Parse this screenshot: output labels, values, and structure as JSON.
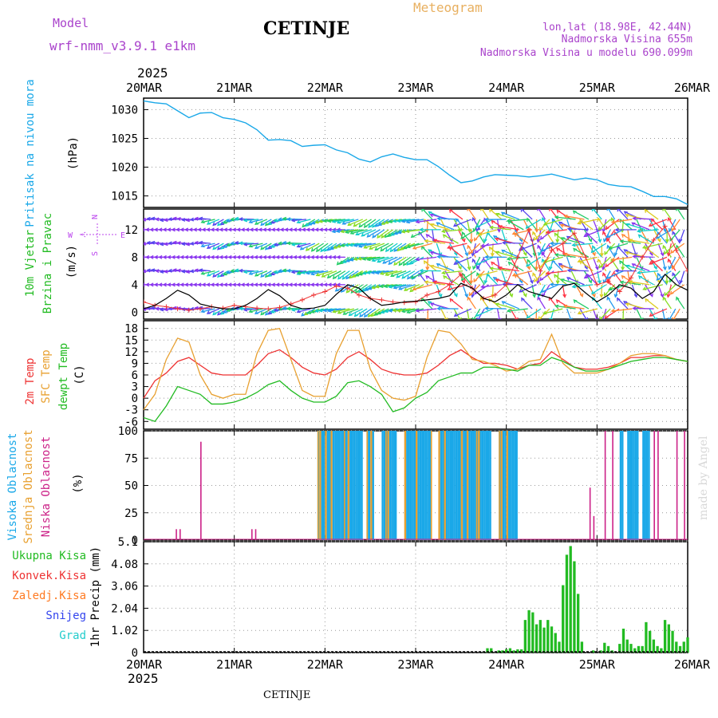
{
  "header": {
    "model_label": "Model",
    "model_name": "wrf-nmm_v3.9.1 e1km",
    "city": "CETINJE",
    "meteogram": "Meteogram",
    "lonlat": "lon,lat (18.98E, 42.44N)",
    "altitude": "Nadmorska Visina 655m",
    "model_altitude": "Nadmorska Visina u modelu 690.099m",
    "footer_city": "CETINJE",
    "credit": "made by Angel",
    "year": "2025"
  },
  "colors": {
    "pressure": "#1aa8e8",
    "wind_label": "#22bb22",
    "wind_dir": "#bb44ee",
    "wind_speed_line": "#000000",
    "gust": "#ee3333",
    "temp2m": "#ee3333",
    "sfc_temp": "#e8a030",
    "dewpt": "#22bb22",
    "cloud_high": "#1aa8e8",
    "cloud_mid": "#e8a030",
    "cloud_low": "#cc2288",
    "precip_total": "#22bb22",
    "precip_conv": "#ee3333",
    "precip_frozen": "#ff7a22",
    "snow": "#3344ee",
    "hail": "#22cccc",
    "meta": "#aa44cc",
    "meteogram": "#e8b060"
  },
  "x_axis": {
    "labels": [
      "20MAR",
      "21MAR",
      "22MAR",
      "23MAR",
      "24MAR",
      "25MAR",
      "26MAR"
    ],
    "range_hours": [
      0,
      144
    ]
  },
  "chart_data": [
    {
      "type": "line",
      "panel": "pressure",
      "ylabel_lines": [
        "Pritisak na nivou mora"
      ],
      "unit": "(hPa)",
      "ylim": [
        1013,
        1032
      ],
      "yticks": [
        1015,
        1020,
        1025,
        1030
      ],
      "grid": true,
      "x_hours": [
        0,
        3,
        6,
        9,
        12,
        15,
        18,
        21,
        24,
        27,
        30,
        33,
        36,
        39,
        42,
        45,
        48,
        51,
        54,
        57,
        60,
        63,
        66,
        69,
        72,
        75,
        78,
        81,
        84,
        87,
        90,
        93,
        96,
        99,
        102,
        105,
        108,
        111,
        114,
        117,
        120,
        123,
        126,
        129,
        132,
        135,
        138,
        141,
        144
      ],
      "series": [
        {
          "values": [
            1031.5,
            1031.2,
            1031.0,
            1029.8,
            1028.6,
            1029.4,
            1029.5,
            1028.6,
            1028.3,
            1027.7,
            1026.5,
            1024.7,
            1024.8,
            1024.6,
            1023.6,
            1023.8,
            1023.9,
            1023.0,
            1022.5,
            1021.4,
            1020.9,
            1021.8,
            1022.3,
            1021.7,
            1021.3,
            1021.3,
            1020.1,
            1018.6,
            1017.3,
            1017.6,
            1018.3,
            1018.7,
            1018.6,
            1018.5,
            1018.3,
            1018.5,
            1018.8,
            1018.3,
            1017.8,
            1018.1,
            1017.8,
            1017.0,
            1016.7,
            1016.6,
            1015.8,
            1014.9,
            1014.9,
            1014.5,
            1013.5
          ]
        }
      ]
    },
    {
      "type": "line",
      "panel": "wind",
      "ylabel_lines": [
        "10m Vjetar",
        "Brzina i Pravac"
      ],
      "unit": "(m/s)",
      "compass": [
        "N",
        "S",
        "W",
        "E"
      ],
      "ylim": [
        -1,
        15
      ],
      "yticks": [
        0,
        4,
        8,
        12
      ],
      "grid": true,
      "x_hours": [
        0,
        3,
        6,
        9,
        12,
        15,
        18,
        21,
        24,
        27,
        30,
        33,
        36,
        39,
        42,
        45,
        48,
        51,
        54,
        57,
        60,
        63,
        66,
        69,
        72,
        75,
        78,
        81,
        84,
        87,
        90,
        93,
        96,
        99,
        102,
        105,
        108,
        111,
        114,
        117,
        120,
        123,
        126,
        129,
        132,
        135,
        138,
        141,
        144
      ],
      "series": [
        {
          "name": "speed",
          "values": [
            0.5,
            1.0,
            2.0,
            3.2,
            2.5,
            1.2,
            0.8,
            0.5,
            0.5,
            1.0,
            2.0,
            3.3,
            2.4,
            1.0,
            0.5,
            0.6,
            1.0,
            2.6,
            4.0,
            3.5,
            2.0,
            1.0,
            1.2,
            1.5,
            1.6,
            1.8,
            2.0,
            2.4,
            4.2,
            3.5,
            2.0,
            1.5,
            2.5,
            4.0,
            3.0,
            2.5,
            2.0,
            3.8,
            4.2,
            2.8,
            1.5,
            2.5,
            4.0,
            3.5,
            2.0,
            3.0,
            5.5,
            4.0,
            3.2
          ]
        },
        {
          "name": "gust",
          "values": [
            1.5,
            1.0,
            0.8,
            0.5,
            0.3,
            0.5,
            0.8,
            0.6,
            1.0,
            0.8,
            0.6,
            0.5,
            0.7,
            1.2,
            1.8,
            2.5,
            3.0,
            3.8,
            3.5,
            2.5,
            2.0,
            1.8,
            1.5,
            1.4,
            1.5,
            2.5,
            3.0,
            4.0,
            5.5,
            3.5,
            2.0,
            2.5,
            4.0,
            8.0,
            12.0,
            6.0,
            9.0,
            10.0,
            11.5,
            8.0,
            4.0,
            4.5,
            3.0,
            5.0,
            8.0,
            10.5,
            12.5,
            9.0,
            6.0
          ]
        }
      ],
      "arrow_rows": [
        0.5,
        4.0,
        6.0,
        8.0,
        10.0,
        12.0,
        13.5
      ]
    },
    {
      "type": "line",
      "panel": "temperature",
      "ylabel_lines": [
        "2m Temp",
        "SFC Temp",
        "dewpt Temp"
      ],
      "unit": "(C)",
      "ylim": [
        -8,
        20
      ],
      "yticks": [
        -6,
        -3,
        0,
        3,
        6,
        9,
        12,
        15,
        18
      ],
      "grid": true,
      "x_hours": [
        0,
        3,
        6,
        9,
        12,
        15,
        18,
        21,
        24,
        27,
        30,
        33,
        36,
        39,
        42,
        45,
        48,
        51,
        54,
        57,
        60,
        63,
        66,
        69,
        72,
        75,
        78,
        81,
        84,
        87,
        90,
        93,
        96,
        99,
        102,
        105,
        108,
        111,
        114,
        117,
        120,
        123,
        126,
        129,
        132,
        135,
        138,
        141,
        144
      ],
      "series": [
        {
          "name": "2m Temp",
          "values": [
            0,
            4.5,
            6.5,
            9.5,
            10.5,
            8.5,
            6.5,
            6.0,
            6.0,
            6.0,
            8.5,
            11.5,
            12.5,
            10.5,
            8.0,
            6.5,
            6.0,
            7.5,
            10.5,
            12.0,
            10.0,
            7.5,
            6.5,
            6.0,
            6.0,
            6.5,
            8.5,
            11.0,
            12.5,
            10.5,
            9.0,
            9.0,
            8.5,
            7.5,
            8.5,
            9.0,
            12.0,
            10.0,
            8.0,
            7.5,
            7.5,
            8.0,
            9.0,
            10.5,
            10.5,
            11.0,
            11.0,
            10.0,
            9.5
          ]
        },
        {
          "name": "SFC Temp",
          "values": [
            -3.0,
            1.0,
            10.0,
            15.5,
            14.5,
            6.0,
            1.0,
            0.0,
            1.0,
            1.0,
            11.5,
            17.5,
            18.0,
            10.0,
            2.0,
            0.5,
            0.5,
            11.5,
            17.5,
            17.5,
            7.5,
            2.0,
            0.0,
            -0.5,
            0.5,
            10.5,
            17.5,
            17.0,
            14.0,
            10.0,
            9.5,
            8.5,
            7.0,
            7.5,
            9.5,
            10.0,
            16.5,
            9.0,
            6.5,
            6.5,
            6.5,
            7.5,
            9.0,
            11.0,
            11.5,
            11.5,
            11.0,
            10.0,
            9.5
          ]
        },
        {
          "name": "dewpt Temp",
          "values": [
            -5.0,
            -6.0,
            -2.0,
            3.0,
            2.0,
            1.0,
            -1.5,
            -1.5,
            -1.0,
            0.0,
            1.5,
            3.5,
            4.5,
            2.0,
            0.0,
            -1.0,
            -1.0,
            0.5,
            4.0,
            4.5,
            3.0,
            1.0,
            -3.5,
            -2.5,
            0.0,
            1.5,
            4.5,
            5.5,
            6.5,
            6.5,
            8.0,
            8.0,
            7.5,
            7.0,
            8.5,
            8.5,
            10.5,
            9.5,
            8.0,
            7.0,
            7.0,
            7.5,
            8.5,
            9.5,
            10.0,
            10.5,
            10.5,
            10.0,
            9.5
          ]
        }
      ]
    },
    {
      "type": "bar",
      "panel": "clouds",
      "ylabel_lines": [
        "Visoka Oblacnost",
        "Srednja Oblacnost",
        "Niska Oblacnost"
      ],
      "unit": "(%)",
      "ylim": [
        0,
        100
      ],
      "yticks": [
        0,
        25,
        50,
        75,
        100
      ],
      "grid": true,
      "high_bands_hours": [
        [
          46,
          58
        ],
        [
          59,
          61
        ],
        [
          63,
          67
        ],
        [
          69,
          76
        ],
        [
          78,
          92
        ],
        [
          94,
          99
        ],
        [
          126,
          127
        ],
        [
          128,
          131
        ],
        [
          132,
          134
        ]
      ],
      "mid_bands_hours": [
        [
          46,
          50
        ],
        [
          53,
          55
        ],
        [
          59,
          62
        ],
        [
          64,
          66
        ],
        [
          69,
          70
        ],
        [
          72,
          73
        ],
        [
          76,
          80
        ],
        [
          84,
          86
        ],
        [
          88,
          90
        ],
        [
          94,
          97
        ]
      ],
      "low_spikes": [
        {
          "hour": 15,
          "value": 90
        },
        {
          "hour": 8.5,
          "value": 10
        },
        {
          "hour": 9.5,
          "value": 10
        },
        {
          "hour": 28.5,
          "value": 10
        },
        {
          "hour": 29.5,
          "value": 10
        },
        {
          "hour": 118,
          "value": 48
        },
        {
          "hour": 119,
          "value": 22
        },
        {
          "hour": 122,
          "value": 100
        },
        {
          "hour": 124,
          "value": 100
        },
        {
          "hour": 135,
          "value": 100
        },
        {
          "hour": 136,
          "value": 100
        },
        {
          "hour": 141,
          "value": 100
        },
        {
          "hour": 143,
          "value": 100
        }
      ]
    },
    {
      "type": "bar",
      "panel": "precipitation",
      "ylabel_lines": [
        "1hr Precip (mm)"
      ],
      "legend": [
        "Ukupna Kisa",
        "Konvek.Kisa",
        "Zaledj.Kisa",
        "Snijeg",
        "Grad"
      ],
      "ylim": [
        0,
        5.1
      ],
      "yticks": [
        0,
        1.02,
        2.04,
        3.06,
        4.08,
        5.1
      ],
      "grid": true,
      "x_hours": [
        91,
        92,
        93,
        94,
        95,
        96,
        97,
        98,
        99,
        100,
        101,
        102,
        103,
        104,
        105,
        106,
        107,
        108,
        109,
        110,
        111,
        112,
        113,
        114,
        115,
        116,
        117,
        118,
        119,
        120,
        121,
        122,
        123,
        124,
        125,
        126,
        127,
        128,
        129,
        130,
        131,
        132,
        133,
        134,
        135,
        136,
        137,
        138,
        139,
        140,
        141,
        142,
        143,
        144
      ],
      "values": [
        0.2,
        0.2,
        0.0,
        0.1,
        0.1,
        0.15,
        0.2,
        0.1,
        0.15,
        0.15,
        1.5,
        1.95,
        1.85,
        1.3,
        1.5,
        1.15,
        1.5,
        1.2,
        0.9,
        0.5,
        3.1,
        4.5,
        4.9,
        4.2,
        2.7,
        0.5,
        0.0,
        0.0,
        0.1,
        0.0,
        0.1,
        0.45,
        0.3,
        0.1,
        0.0,
        0.4,
        1.1,
        0.6,
        0.4,
        0.2,
        0.3,
        0.3,
        1.4,
        1.0,
        0.6,
        0.3,
        0.2,
        1.5,
        1.3,
        1.0,
        0.5,
        0.3,
        0.5,
        0.7
      ]
    }
  ]
}
